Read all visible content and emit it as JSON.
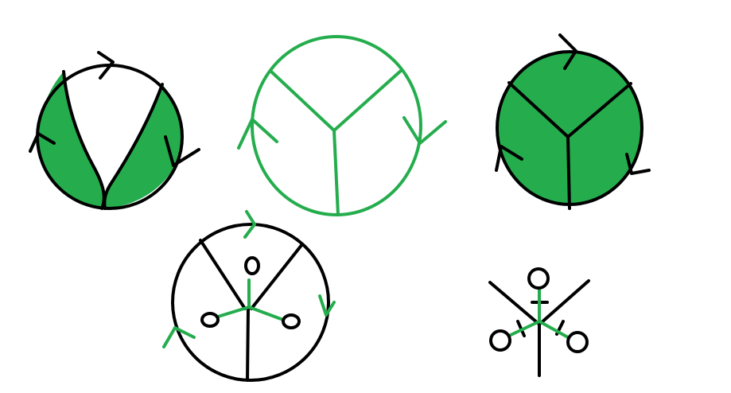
{
  "colors": {
    "background": "#ffffff",
    "black": "#000000",
    "green": "#25ad4d"
  },
  "figures": [
    {
      "id": "figure-1",
      "description_name": "circle-with-v-curve-filled-sides"
    },
    {
      "id": "figure-2",
      "description_name": "green-outline-circle-with-y-tree"
    },
    {
      "id": "figure-3",
      "description_name": "filled-green-circle-with-y-tree"
    },
    {
      "id": "figure-4",
      "description_name": "circle-with-tree-and-green-dual-graph"
    },
    {
      "id": "figure-5",
      "description_name": "tree-with-green-dual-graph-no-circle"
    }
  ]
}
